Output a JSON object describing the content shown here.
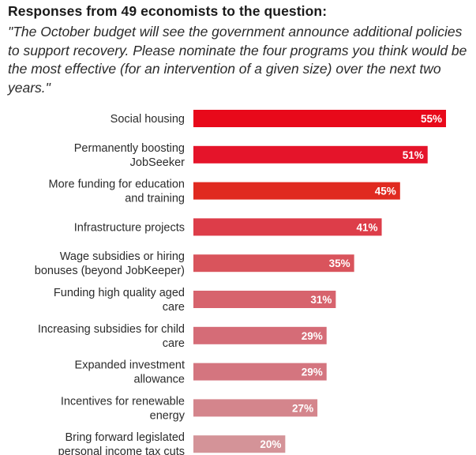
{
  "header": {
    "title": "Responses from 49 economists to the question:",
    "subtitle": "\"The October budget will see the government announce additional policies to support recovery. Please nominate the four programs you think would be the most effective (for an intervention of a given size) over the next two years.\""
  },
  "chart_data": {
    "type": "bar",
    "orientation": "horizontal",
    "title": "Responses from 49 economists to the question:",
    "categories": [
      [
        "Social housing"
      ],
      [
        "Permanently boosting",
        "JobSeeker"
      ],
      [
        "More funding for education",
        "and training"
      ],
      [
        "Infrastructure projects"
      ],
      [
        "Wage subsidies or hiring",
        "bonuses (beyond JobKeeper)"
      ],
      [
        "Funding high quality aged",
        "care"
      ],
      [
        "Increasing subsidies for child",
        "care"
      ],
      [
        "Expanded investment",
        "allowance"
      ],
      [
        "Incentives for renewable",
        "energy"
      ],
      [
        "Bring forward legislated",
        "personal income tax cuts"
      ]
    ],
    "values": [
      55,
      51,
      45,
      41,
      35,
      31,
      29,
      29,
      27,
      20
    ],
    "value_labels": [
      "55%",
      "51%",
      "45%",
      "41%",
      "35%",
      "31%",
      "29%",
      "29%",
      "27%",
      "20%"
    ],
    "colors": [
      "#e8091a",
      "#e5142a",
      "#e02a20",
      "#dd3d49",
      "#d9545c",
      "#d7636d",
      "#d56c77",
      "#d4757f",
      "#d4858c",
      "#d49398"
    ],
    "xlim": [
      0,
      55
    ],
    "grid": false,
    "legend": "none"
  }
}
